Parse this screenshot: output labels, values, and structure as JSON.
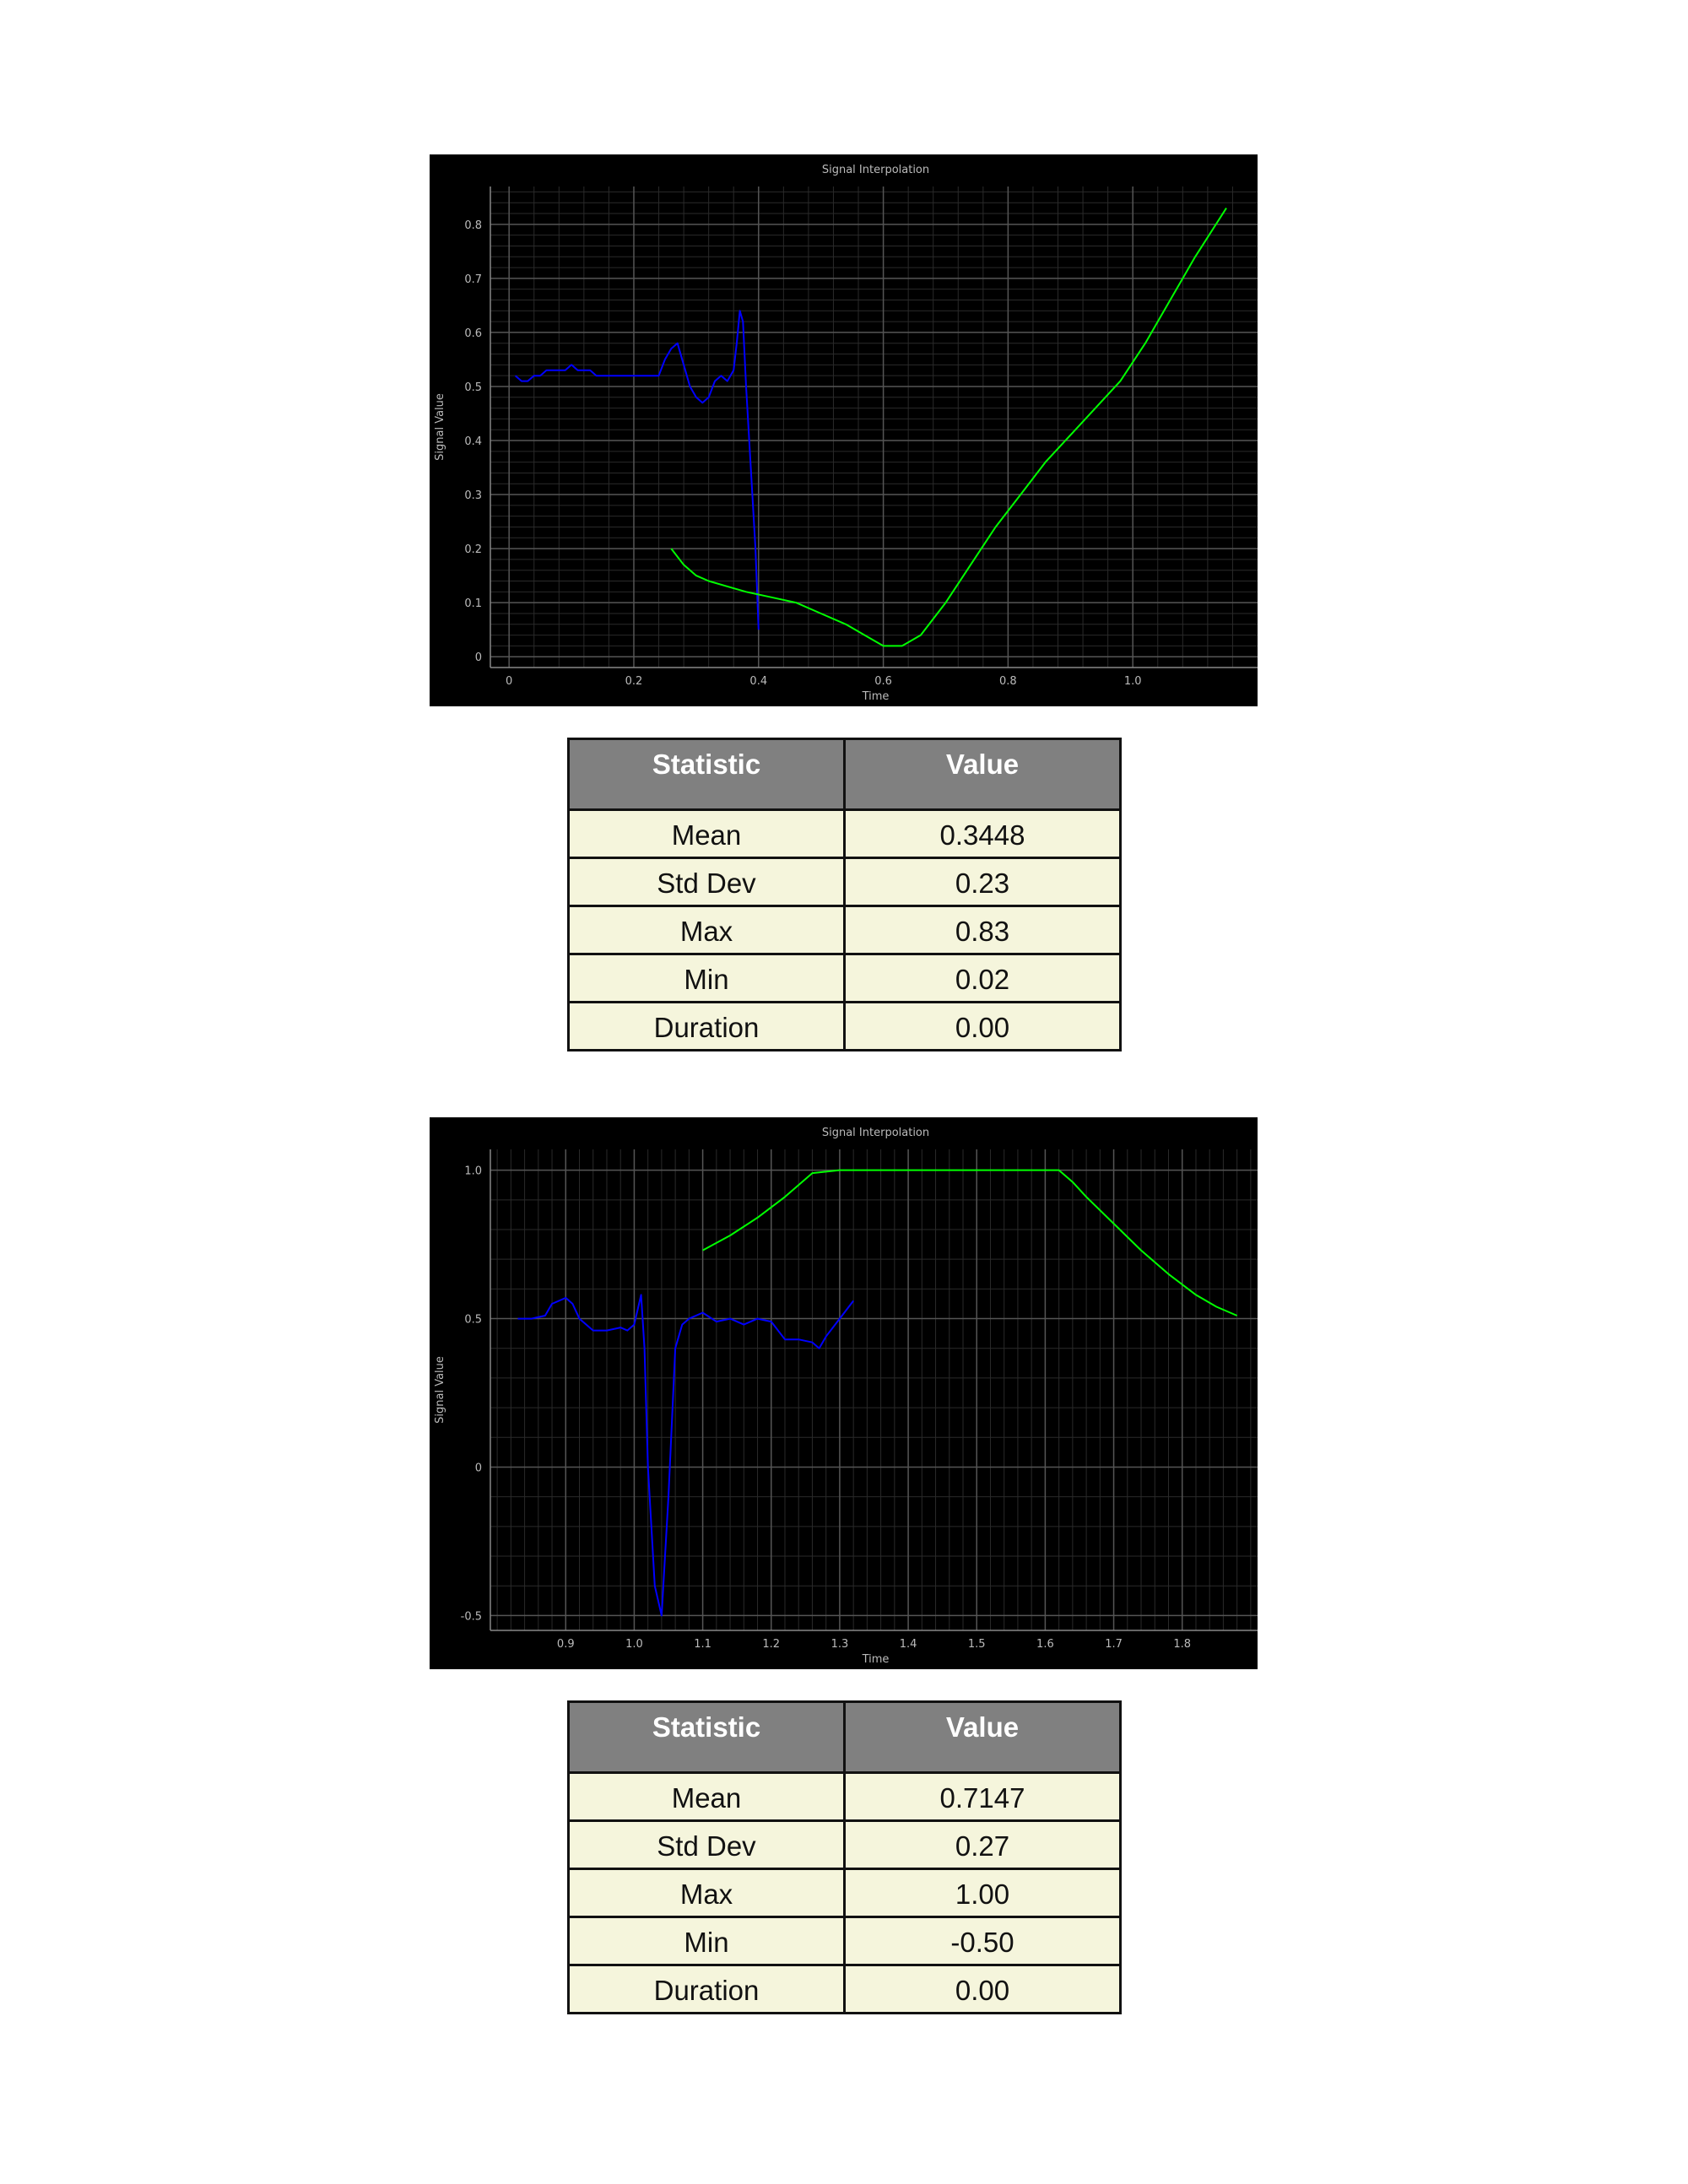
{
  "charts": [
    {
      "chart_data": {
        "type": "line",
        "title": "Signal Interpolation",
        "xlabel": "Time",
        "ylabel": "Signal Value",
        "xlim": [
          -0.03,
          1.2
        ],
        "ylim": [
          -0.02,
          0.87
        ],
        "xticks": [
          0,
          0.2,
          0.4,
          0.6,
          0.8,
          1.0
        ],
        "xtick_labels": [
          "0",
          "0.2",
          "0.4",
          "0.6",
          "0.8",
          "1.0"
        ],
        "yticks": [
          0,
          0.1,
          0.2,
          0.3,
          0.4,
          0.5,
          0.6,
          0.7,
          0.8
        ],
        "ytick_labels": [
          "0",
          "0.1",
          "0.2",
          "0.3",
          "0.4",
          "0.5",
          "0.6",
          "0.7",
          "0.8"
        ],
        "grid": true,
        "series": [
          {
            "color": "#0000ff",
            "x": [
              0.01,
              0.02,
              0.03,
              0.04,
              0.05,
              0.06,
              0.07,
              0.08,
              0.09,
              0.1,
              0.11,
              0.12,
              0.13,
              0.14,
              0.15,
              0.16,
              0.18,
              0.2,
              0.22,
              0.24,
              0.25,
              0.26,
              0.27,
              0.28,
              0.29,
              0.3,
              0.31,
              0.32,
              0.33,
              0.34,
              0.35,
              0.36,
              0.365,
              0.37,
              0.375,
              0.38,
              0.385,
              0.39,
              0.395,
              0.4
            ],
            "y": [
              0.52,
              0.51,
              0.51,
              0.52,
              0.52,
              0.53,
              0.53,
              0.53,
              0.53,
              0.54,
              0.53,
              0.53,
              0.53,
              0.52,
              0.52,
              0.52,
              0.52,
              0.52,
              0.52,
              0.52,
              0.55,
              0.57,
              0.58,
              0.54,
              0.5,
              0.48,
              0.47,
              0.48,
              0.51,
              0.52,
              0.51,
              0.53,
              0.58,
              0.64,
              0.62,
              0.5,
              0.4,
              0.3,
              0.2,
              0.05
            ]
          },
          {
            "color": "#00ff00",
            "x": [
              0.26,
              0.28,
              0.3,
              0.32,
              0.35,
              0.38,
              0.42,
              0.46,
              0.5,
              0.54,
              0.57,
              0.6,
              0.63,
              0.66,
              0.7,
              0.74,
              0.78,
              0.82,
              0.86,
              0.9,
              0.94,
              0.98,
              1.02,
              1.06,
              1.1,
              1.15
            ],
            "y": [
              0.2,
              0.17,
              0.15,
              0.14,
              0.13,
              0.12,
              0.11,
              0.1,
              0.08,
              0.06,
              0.04,
              0.02,
              0.02,
              0.04,
              0.1,
              0.17,
              0.24,
              0.3,
              0.36,
              0.41,
              0.46,
              0.51,
              0.58,
              0.66,
              0.74,
              0.83
            ]
          }
        ]
      },
      "table": {
        "headers": [
          "Statistic",
          "Value"
        ],
        "rows": [
          [
            "Mean",
            "0.3448"
          ],
          [
            "Std Dev",
            "0.23"
          ],
          [
            "Max",
            "0.83"
          ],
          [
            "Min",
            "0.02"
          ],
          [
            "Duration",
            "0.00"
          ]
        ]
      }
    },
    {
      "chart_data": {
        "type": "line",
        "title": "Signal Interpolation",
        "xlabel": "Time",
        "ylabel": "Signal Value",
        "xlim": [
          0.79,
          1.91
        ],
        "ylim": [
          -0.55,
          1.07
        ],
        "xticks": [
          0.9,
          1.0,
          1.1,
          1.2,
          1.3,
          1.4,
          1.5,
          1.6,
          1.7,
          1.8
        ],
        "xtick_labels": [
          "0.9",
          "1.0",
          "1.1",
          "1.2",
          "1.3",
          "1.4",
          "1.5",
          "1.6",
          "1.7",
          "1.8"
        ],
        "yticks": [
          -0.5,
          0,
          0.5,
          1.0
        ],
        "ytick_labels": [
          "-0.5",
          "0",
          "0.5",
          "1.0"
        ],
        "grid": true,
        "series": [
          {
            "color": "#0000ff",
            "x": [
              0.83,
              0.85,
              0.87,
              0.88,
              0.9,
              0.91,
              0.92,
              0.94,
              0.96,
              0.98,
              0.99,
              1.0,
              1.01,
              1.015,
              1.02,
              1.03,
              1.04,
              1.05,
              1.06,
              1.07,
              1.08,
              1.1,
              1.12,
              1.14,
              1.16,
              1.18,
              1.2,
              1.22,
              1.24,
              1.26,
              1.27,
              1.28,
              1.3,
              1.32
            ],
            "y": [
              0.5,
              0.5,
              0.51,
              0.55,
              0.57,
              0.55,
              0.5,
              0.46,
              0.46,
              0.47,
              0.46,
              0.48,
              0.58,
              0.4,
              0.0,
              -0.4,
              -0.5,
              -0.1,
              0.4,
              0.48,
              0.5,
              0.52,
              0.49,
              0.5,
              0.48,
              0.5,
              0.49,
              0.43,
              0.43,
              0.42,
              0.4,
              0.44,
              0.5,
              0.56
            ]
          },
          {
            "color": "#00ff00",
            "x": [
              1.1,
              1.14,
              1.18,
              1.22,
              1.26,
              1.3,
              1.4,
              1.5,
              1.6,
              1.62,
              1.64,
              1.66,
              1.7,
              1.74,
              1.78,
              1.82,
              1.85,
              1.88
            ],
            "y": [
              0.73,
              0.78,
              0.84,
              0.91,
              0.99,
              1.0,
              1.0,
              1.0,
              1.0,
              1.0,
              0.96,
              0.91,
              0.82,
              0.73,
              0.65,
              0.58,
              0.54,
              0.51
            ]
          }
        ]
      },
      "table": {
        "headers": [
          "Statistic",
          "Value"
        ],
        "rows": [
          [
            "Mean",
            "0.7147"
          ],
          [
            "Std Dev",
            "0.27"
          ],
          [
            "Max",
            "1.00"
          ],
          [
            "Min",
            "-0.50"
          ],
          [
            "Duration",
            "0.00"
          ]
        ]
      }
    }
  ],
  "colors": {
    "chart_background": "#000000",
    "grid": "#555555",
    "table_header": "#808080",
    "table_cell": "#f5f5dc"
  }
}
